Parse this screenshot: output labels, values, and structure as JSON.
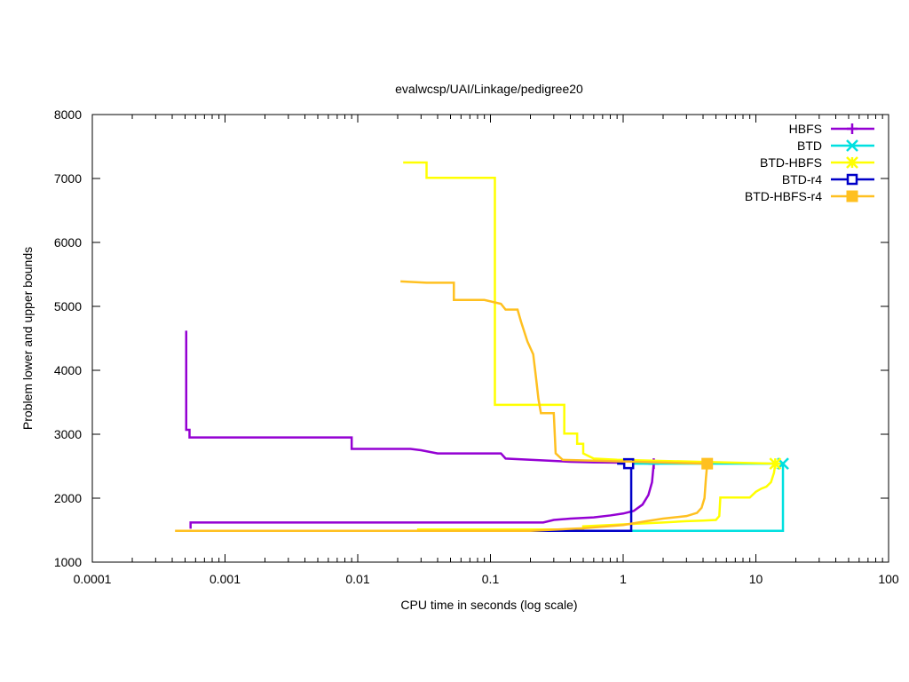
{
  "chart_data": {
    "type": "line",
    "title": "evalwcsp/UAI/Linkage/pedigree20",
    "xlabel": "CPU time in seconds (log scale)",
    "ylabel": "Problem lower and upper bounds",
    "x_scale": "log",
    "xlim": [
      0.0001,
      100
    ],
    "ylim": [
      1000,
      8000
    ],
    "x_ticks": [
      0.0001,
      0.001,
      0.01,
      0.1,
      1,
      10,
      100
    ],
    "x_tick_labels": [
      "0.0001",
      "0.001",
      "0.01",
      "0.1",
      "1",
      "10",
      "100"
    ],
    "y_ticks": [
      1000,
      2000,
      3000,
      4000,
      5000,
      6000,
      7000,
      8000
    ],
    "y_tick_labels": [
      "1000",
      "2000",
      "3000",
      "4000",
      "5000",
      "6000",
      "7000",
      "8000"
    ],
    "grid": false,
    "legend_position": "top-right",
    "series": [
      {
        "name": "HBFS",
        "color": "#9400d3",
        "marker": "plus",
        "end_marker": [
          1.7,
          2540
        ],
        "upper": [
          [
            0.00051,
            4620
          ],
          [
            0.00051,
            3070
          ],
          [
            0.00054,
            3070
          ],
          [
            0.00054,
            2950
          ],
          [
            0.009,
            2950
          ],
          [
            0.009,
            2770
          ],
          [
            0.025,
            2770
          ],
          [
            0.03,
            2750
          ],
          [
            0.04,
            2700
          ],
          [
            0.12,
            2700
          ],
          [
            0.13,
            2620
          ],
          [
            0.2,
            2600
          ],
          [
            0.4,
            2570
          ],
          [
            0.6,
            2560
          ],
          [
            1.0,
            2555
          ],
          [
            1.7,
            2540
          ]
        ],
        "lower": [
          [
            0.00054,
            1540
          ],
          [
            0.00055,
            1540
          ],
          [
            0.00055,
            1620
          ],
          [
            0.25,
            1620
          ],
          [
            0.3,
            1660
          ],
          [
            0.4,
            1680
          ],
          [
            0.6,
            1700
          ],
          [
            0.8,
            1730
          ],
          [
            1.0,
            1760
          ],
          [
            1.2,
            1800
          ],
          [
            1.4,
            1900
          ],
          [
            1.55,
            2050
          ],
          [
            1.65,
            2250
          ],
          [
            1.7,
            2540
          ]
        ]
      },
      {
        "name": "BTD",
        "color": "#00e0e0",
        "marker": "cross",
        "end_marker": [
          16,
          2540
        ],
        "upper": [
          [
            1.15,
            2540
          ],
          [
            16,
            2540
          ]
        ],
        "lower": [
          [
            1.15,
            1490
          ],
          [
            16,
            1490
          ],
          [
            16,
            2540
          ]
        ]
      },
      {
        "name": "BTD-HBFS",
        "color": "#ffff00",
        "marker": "star",
        "end_marker": [
          14,
          2540
        ],
        "upper": [
          [
            0.022,
            7250
          ],
          [
            0.033,
            7250
          ],
          [
            0.033,
            7010
          ],
          [
            0.108,
            7010
          ],
          [
            0.108,
            3460
          ],
          [
            0.36,
            3460
          ],
          [
            0.36,
            3010
          ],
          [
            0.45,
            3010
          ],
          [
            0.45,
            2850
          ],
          [
            0.5,
            2850
          ],
          [
            0.5,
            2700
          ],
          [
            0.6,
            2620
          ],
          [
            0.9,
            2600
          ],
          [
            14,
            2540
          ]
        ],
        "lower": [
          [
            0.028,
            1510
          ],
          [
            0.5,
            1510
          ],
          [
            0.5,
            1560
          ],
          [
            1.0,
            1590
          ],
          [
            2.0,
            1620
          ],
          [
            3.0,
            1640
          ],
          [
            4.0,
            1650
          ],
          [
            5.0,
            1660
          ],
          [
            5.3,
            1720
          ],
          [
            5.4,
            2010
          ],
          [
            9.0,
            2010
          ],
          [
            10,
            2100
          ],
          [
            11,
            2150
          ],
          [
            12,
            2180
          ],
          [
            13,
            2250
          ],
          [
            13.7,
            2400
          ],
          [
            14,
            2540
          ]
        ]
      },
      {
        "name": "BTD-r4",
        "color": "#0000c8",
        "marker": "square",
        "end_marker": [
          1.1,
          2540
        ],
        "upper": [
          [
            0.9,
            2540
          ],
          [
            1.1,
            2540
          ]
        ],
        "lower": [
          [
            0.105,
            1490
          ],
          [
            1.15,
            1490
          ],
          [
            1.15,
            2540
          ]
        ]
      },
      {
        "name": "BTD-HBFS-r4",
        "color": "#ffc020",
        "marker": "filled-square",
        "end_marker": [
          4.3,
          2540
        ],
        "upper": [
          [
            0.021,
            5390
          ],
          [
            0.033,
            5370
          ],
          [
            0.053,
            5370
          ],
          [
            0.053,
            5100
          ],
          [
            0.09,
            5100
          ],
          [
            0.12,
            5040
          ],
          [
            0.13,
            4950
          ],
          [
            0.16,
            4950
          ],
          [
            0.17,
            4760
          ],
          [
            0.18,
            4600
          ],
          [
            0.19,
            4450
          ],
          [
            0.21,
            4250
          ],
          [
            0.22,
            3900
          ],
          [
            0.23,
            3550
          ],
          [
            0.24,
            3330
          ],
          [
            0.3,
            3330
          ],
          [
            0.31,
            2700
          ],
          [
            0.35,
            2600
          ],
          [
            4.3,
            2540
          ]
        ],
        "lower": [
          [
            0.00042,
            1490
          ],
          [
            0.2,
            1490
          ],
          [
            0.5,
            1530
          ],
          [
            1.0,
            1580
          ],
          [
            1.5,
            1640
          ],
          [
            2.0,
            1680
          ],
          [
            3.0,
            1720
          ],
          [
            3.6,
            1770
          ],
          [
            3.9,
            1850
          ],
          [
            4.1,
            2000
          ],
          [
            4.2,
            2300
          ],
          [
            4.3,
            2540
          ]
        ]
      }
    ]
  }
}
